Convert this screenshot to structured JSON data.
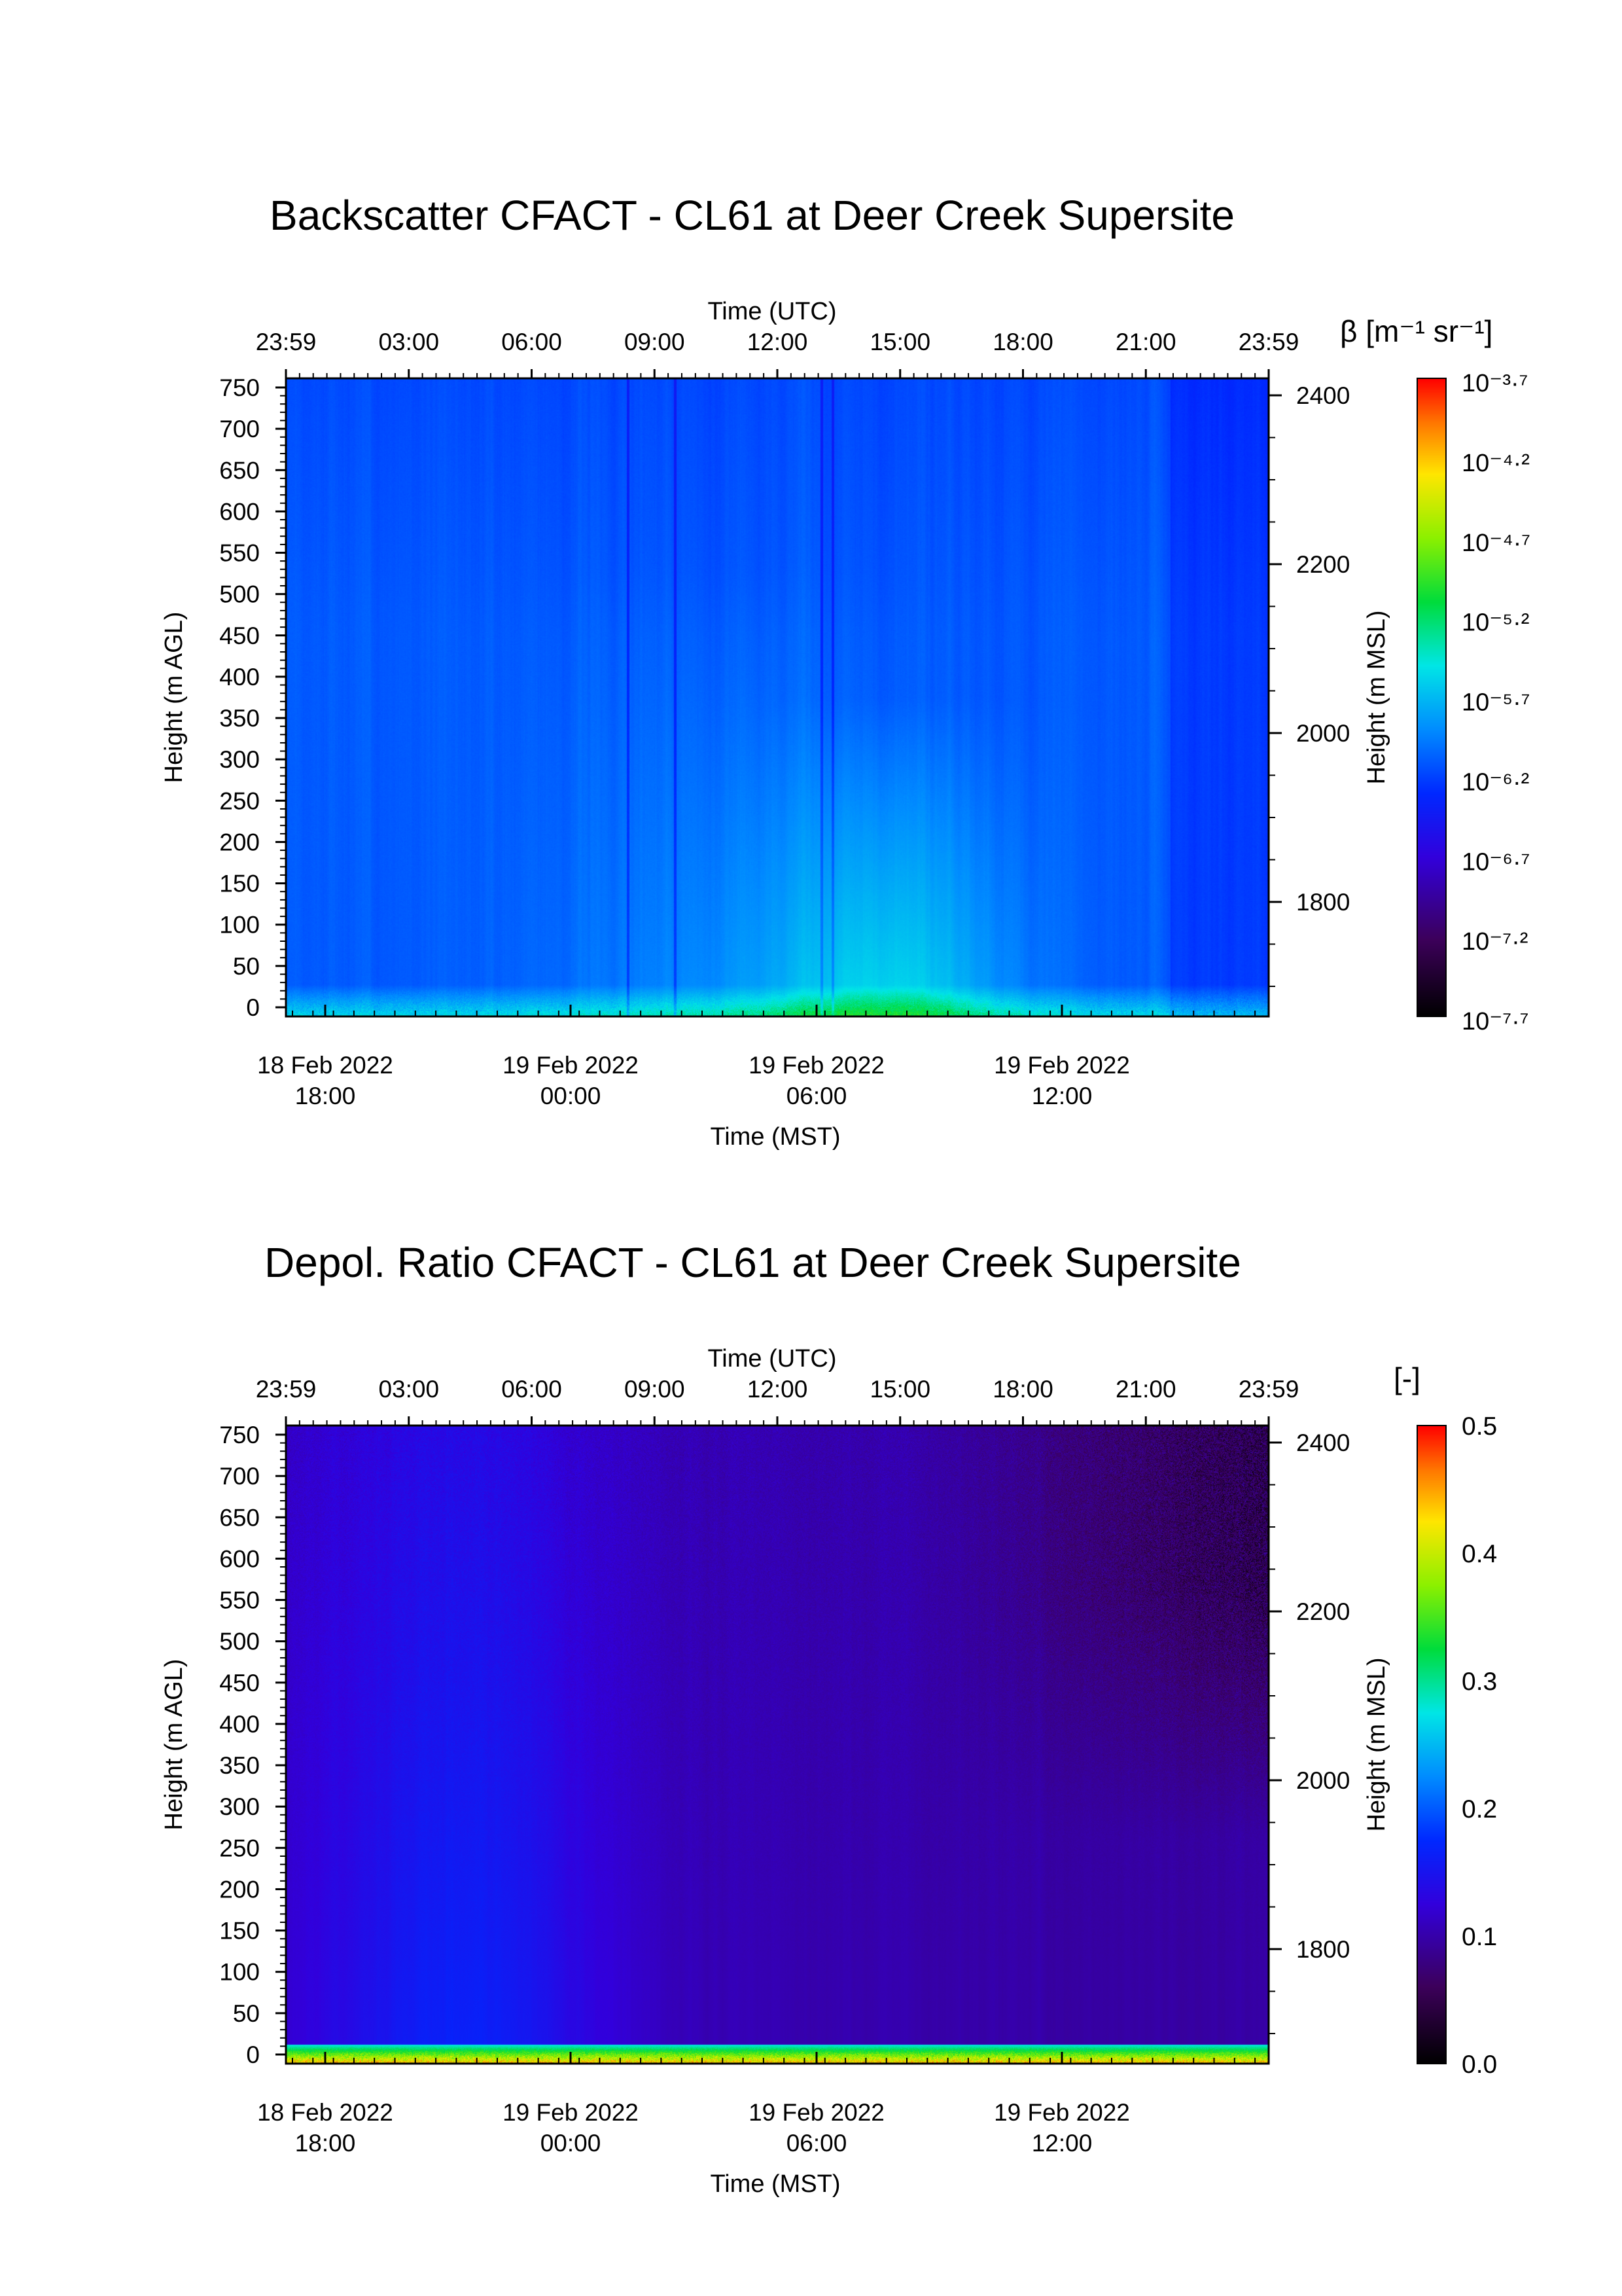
{
  "chart_data": [
    {
      "type": "heatmap",
      "title": "Backscatter CFACT - CL61 at Deer Creek Supersite",
      "top_axis": {
        "label": "Time (UTC)",
        "tick_labels": [
          "23:59",
          "03:00",
          "06:00",
          "09:00",
          "12:00",
          "15:00",
          "18:00",
          "21:00",
          "23:59"
        ]
      },
      "bottom_axis": {
        "label": "Time (MST)",
        "tick_labels": [
          {
            "date": "18 Feb 2022",
            "time": "18:00"
          },
          {
            "date": "19 Feb 2022",
            "time": "00:00"
          },
          {
            "date": "19 Feb 2022",
            "time": "06:00"
          },
          {
            "date": "19 Feb 2022",
            "time": "12:00"
          }
        ]
      },
      "left_axis": {
        "label": "Height (m AGL)",
        "range": [
          0,
          750
        ],
        "tick_labels": [
          "0",
          "50",
          "100",
          "150",
          "200",
          "250",
          "300",
          "350",
          "400",
          "450",
          "500",
          "550",
          "600",
          "650",
          "700",
          "750"
        ]
      },
      "right_axis": {
        "label": "Height (m MSL)",
        "tick_labels": [
          "1800",
          "2000",
          "2200",
          "2400"
        ]
      },
      "colorbar": {
        "label": "β [m⁻¹ sr⁻¹]",
        "scale": "log",
        "tick_labels": [
          "10⁻³·⁷",
          "10⁻⁴·²",
          "10⁻⁴·⁷",
          "10⁻⁵·²",
          "10⁻⁵·⁷",
          "10⁻⁶·²",
          "10⁻⁶·⁷",
          "10⁻⁷·²",
          "10⁻⁷·⁷"
        ],
        "tick_values": [
          -3.7,
          -4.2,
          -4.7,
          -5.2,
          -5.7,
          -6.2,
          -6.7,
          -7.2,
          -7.7
        ],
        "range": [
          -7.7,
          -3.7
        ],
        "colormap": "rainbow"
      }
    },
    {
      "type": "heatmap",
      "title": "Depol. Ratio CFACT - CL61 at Deer Creek Supersite",
      "top_axis": {
        "label": "Time (UTC)",
        "tick_labels": [
          "23:59",
          "03:00",
          "06:00",
          "09:00",
          "12:00",
          "15:00",
          "18:00",
          "21:00",
          "23:59"
        ]
      },
      "bottom_axis": {
        "label": "Time (MST)",
        "tick_labels": [
          {
            "date": "18 Feb 2022",
            "time": "18:00"
          },
          {
            "date": "19 Feb 2022",
            "time": "00:00"
          },
          {
            "date": "19 Feb 2022",
            "time": "06:00"
          },
          {
            "date": "19 Feb 2022",
            "time": "12:00"
          }
        ]
      },
      "left_axis": {
        "label": "Height (m AGL)",
        "range": [
          0,
          750
        ],
        "tick_labels": [
          "0",
          "50",
          "100",
          "150",
          "200",
          "250",
          "300",
          "350",
          "400",
          "450",
          "500",
          "550",
          "600",
          "650",
          "700",
          "750"
        ]
      },
      "right_axis": {
        "label": "Height (m MSL)",
        "tick_labels": [
          "1800",
          "2000",
          "2200",
          "2400"
        ]
      },
      "colorbar": {
        "label": "[-]",
        "scale": "linear",
        "tick_labels": [
          "0.5",
          "0.4",
          "0.3",
          "0.2",
          "0.1",
          "0.0"
        ],
        "tick_values": [
          0.5,
          0.4,
          0.3,
          0.2,
          0.1,
          0.0
        ],
        "range": [
          0.0,
          0.5
        ],
        "colormap": "rainbow"
      }
    }
  ]
}
